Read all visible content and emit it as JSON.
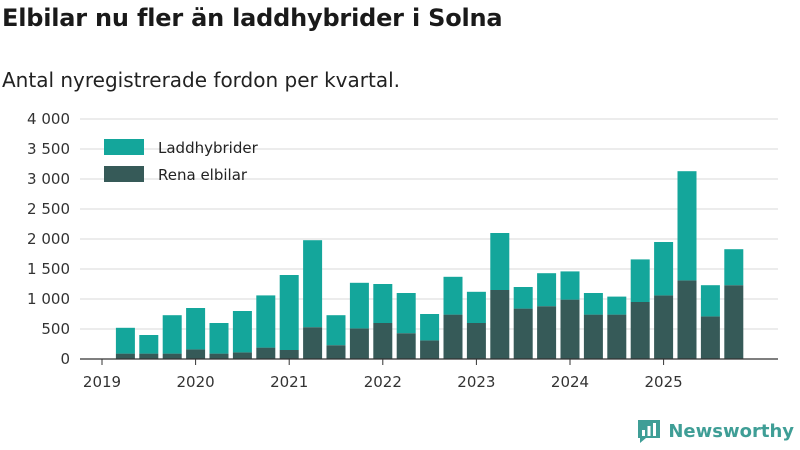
{
  "title": "Elbilar nu fler än laddhybrider i Solna",
  "subtitle": "Antal nyregistrerade fordon per kvartal.",
  "brand": {
    "name": "Newsworthy",
    "icon": "newsworthy-logo-icon"
  },
  "colors": {
    "laddhybrider": "#14a69b",
    "elbilar": "#365a58",
    "grid": "#d9d9d9",
    "axis": "#333333"
  },
  "chart_data": {
    "type": "bar",
    "stacked": true,
    "title": "Elbilar nu fler än laddhybrider i Solna",
    "subtitle": "Antal nyregistrerade fordon per kvartal.",
    "xlabel": "",
    "ylabel": "",
    "ylim": [
      0,
      4000
    ],
    "yticks": [
      0,
      500,
      1000,
      1500,
      2000,
      2500,
      3000,
      3500,
      4000
    ],
    "ytick_labels": [
      "0",
      "500",
      "1 000",
      "1 500",
      "2 000",
      "2 500",
      "3 000",
      "3 500",
      "4 000"
    ],
    "xtick_labels": [
      "2019",
      "2020",
      "2021",
      "2022",
      "2023",
      "2024",
      "2025"
    ],
    "grid": true,
    "legend_position": "top-left",
    "categories": [
      "2019 Q2",
      "2019 Q3",
      "2019 Q4",
      "2020 Q1",
      "2020 Q2",
      "2020 Q3",
      "2020 Q4",
      "2021 Q1",
      "2021 Q2",
      "2021 Q3",
      "2021 Q4",
      "2022 Q1",
      "2022 Q2",
      "2022 Q3",
      "2022 Q4",
      "2023 Q1",
      "2023 Q2",
      "2023 Q3",
      "2023 Q4",
      "2024 Q1",
      "2024 Q2",
      "2024 Q3",
      "2024 Q4",
      "2025 Q1",
      "2025 Q2",
      "2025 Q3",
      "2025 Q4"
    ],
    "series": [
      {
        "name": "Rena elbilar",
        "values": [
          90,
          90,
          90,
          160,
          90,
          110,
          190,
          150,
          530,
          230,
          510,
          600,
          430,
          310,
          740,
          600,
          1150,
          840,
          880,
          990,
          740,
          740,
          950,
          1060,
          1310,
          710,
          1230
        ]
      },
      {
        "name": "Laddhybrider",
        "values": [
          430,
          310,
          640,
          690,
          510,
          690,
          870,
          1250,
          1450,
          500,
          760,
          650,
          670,
          440,
          630,
          520,
          950,
          360,
          550,
          470,
          360,
          300,
          710,
          890,
          1820,
          520,
          600
        ]
      }
    ]
  }
}
